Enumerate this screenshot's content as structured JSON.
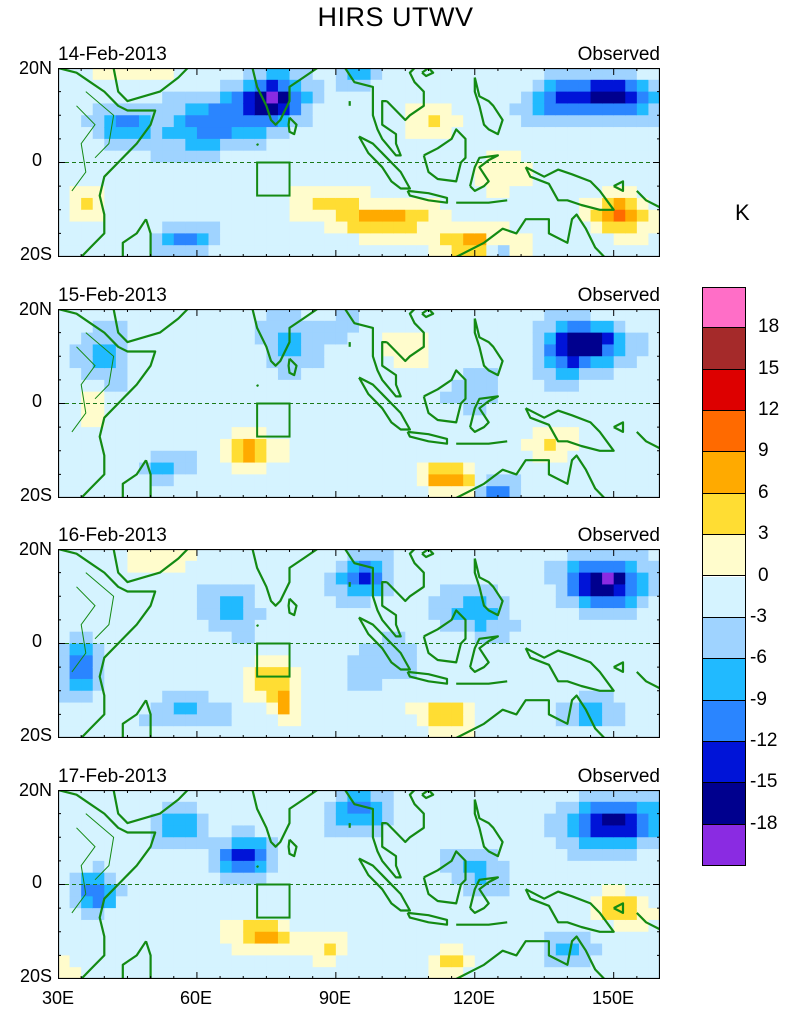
{
  "title": "HIRS UTWV",
  "panels": [
    {
      "date": "14-Feb-2013",
      "label": "Observed"
    },
    {
      "date": "15-Feb-2013",
      "label": "Observed"
    },
    {
      "date": "16-Feb-2013",
      "label": "Observed"
    },
    {
      "date": "17-Feb-2013",
      "label": "Observed"
    }
  ],
  "lat_labels": {
    "north": "20N",
    "equator": "0",
    "south": "20S"
  },
  "lon_labels": [
    "30E",
    "60E",
    "90E",
    "120E",
    "150E"
  ],
  "colorbar": {
    "unit": "K",
    "labels": [
      "18",
      "15",
      "12",
      "9",
      "6",
      "3",
      "0",
      "-3",
      "-6",
      "-9",
      "-12",
      "-15",
      "-18"
    ],
    "colors": [
      "#ff6ec7",
      "#a52a2a",
      "#dd0000",
      "#ff6a00",
      "#ffaa00",
      "#ffdd33",
      "#fffccc",
      "#d5f3ff",
      "#9fd3ff",
      "#21baff",
      "#2a85ff",
      "#0014d8",
      "#00008e",
      "#8a2be2"
    ]
  },
  "colors": {
    "coast": "#138a13",
    "equator_line": "#1a7a1a"
  }
}
